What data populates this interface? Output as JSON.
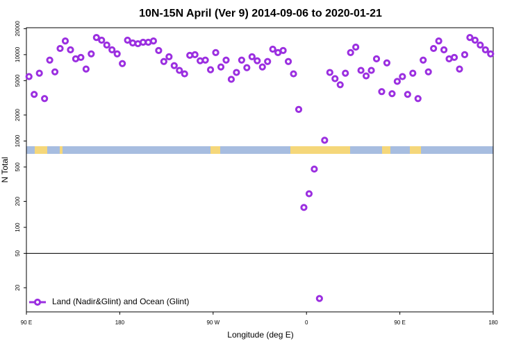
{
  "chart_data": {
    "type": "scatter",
    "title": "10N-15N April (Ver 9)   2014-09-06 to 2020-01-21",
    "x_label": "Longitude (deg E)",
    "y_label": "N Total",
    "log_y": true,
    "hline": 50,
    "legend": "bottom-left",
    "xlim": [
      90,
      540
    ],
    "ylim": [
      10.5,
      20500
    ],
    "xticks": [
      {
        "value": 90,
        "label": "90 E"
      },
      {
        "value": 180,
        "label": "180"
      },
      {
        "value": 270,
        "label": "90 W"
      },
      {
        "value": 360,
        "label": "0"
      },
      {
        "value": 450,
        "label": "90 E"
      },
      {
        "value": 540,
        "label": "180"
      }
    ],
    "yticks": [
      20,
      50,
      100,
      200,
      500,
      1000,
      2000,
      5000,
      10000,
      20000
    ],
    "series": [
      {
        "name": "Land (Nadir&Glint) and Ocean (Glint)",
        "color": "#9b2fe0",
        "x": [
          92.5,
          97.5,
          102.5,
          107.5,
          112.5,
          117.5,
          122.5,
          127.5,
          132.5,
          137.5,
          142.5,
          147.5,
          152.5,
          157.5,
          162.5,
          167.5,
          172.5,
          177.5,
          182.5,
          187.5,
          192.5,
          197.5,
          202.5,
          207.5,
          212.5,
          217.5,
          222.5,
          227.5,
          232.5,
          237.5,
          242.5,
          247.5,
          252.5,
          257.5,
          262.5,
          267.5,
          272.5,
          277.5,
          282.5,
          287.5,
          292.5,
          297.5,
          302.5,
          307.5,
          312.5,
          317.5,
          322.5,
          327.5,
          332.5,
          337.5,
          342.5,
          347.5,
          352.5,
          357.5,
          362.5,
          367.5,
          372.5,
          377.5,
          382.5,
          387.5,
          392.5,
          397.5,
          402.5,
          407.5,
          412.5,
          417.5,
          422.5,
          427.5,
          432.5,
          437.5,
          442.5,
          447.5,
          452.5,
          457.5,
          462.5,
          467.5,
          472.5,
          477.5,
          482.5,
          487.5,
          492.5,
          497.5,
          502.5,
          507.5,
          512.5,
          517.5,
          522.5,
          527.5,
          532.5,
          537.5
        ],
        "values": [
          5570,
          3465,
          6100,
          3100,
          8640,
          6320,
          11790,
          14400,
          11370,
          8950,
          9290,
          6810,
          10200,
          15800,
          14690,
          12910,
          11370,
          10200,
          7880,
          14690,
          13650,
          13390,
          13900,
          13900,
          14400,
          11160,
          8330,
          9460,
          7460,
          6570,
          5990,
          9820,
          10000,
          8490,
          8640,
          6690,
          10570,
          7200,
          8640,
          5180,
          6220,
          8640,
          7070,
          9460,
          8490,
          7200,
          8330,
          11570,
          10570,
          11160,
          8330,
          5990,
          2320,
          170,
          245,
          473,
          15,
          1020,
          6220,
          5270,
          4480,
          6100,
          10570,
          12220,
          6570,
          5670,
          6570,
          8950,
          3730,
          8030,
          3530,
          4900,
          5570,
          3465,
          6100,
          3100,
          8640,
          6320,
          11790,
          14400,
          11370,
          8950,
          9290,
          6810,
          10000,
          15800,
          14690,
          12910,
          11370,
          10200
        ]
      }
    ]
  }
}
